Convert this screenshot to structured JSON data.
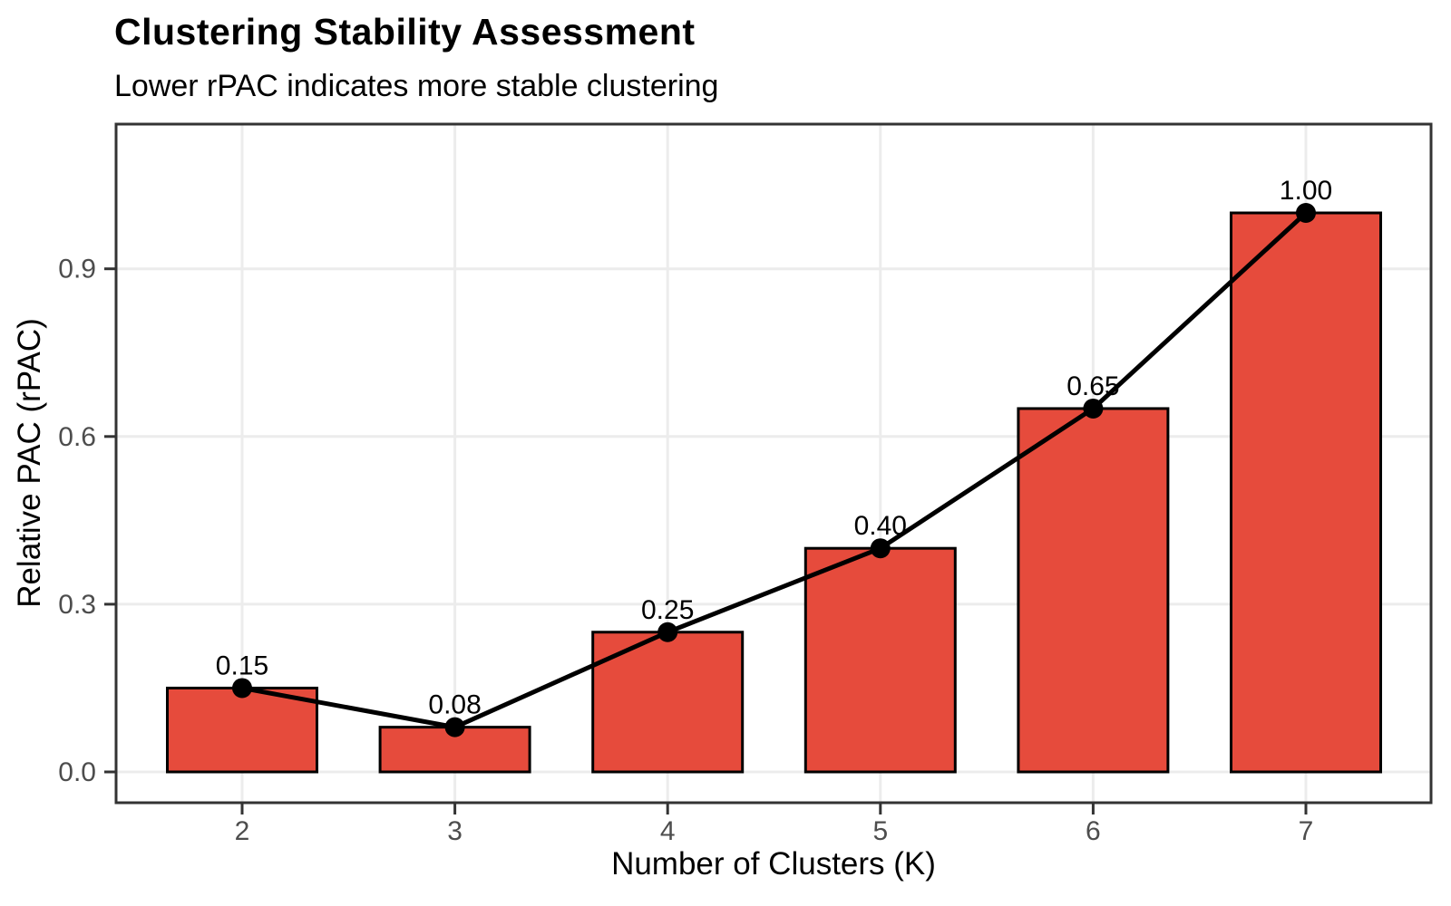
{
  "title": "Clustering Stability Assessment",
  "subtitle": "Lower rPAC indicates more stable clustering",
  "chart_data": {
    "type": "bar",
    "overlay": "line",
    "categories": [
      "2",
      "3",
      "4",
      "5",
      "6",
      "7"
    ],
    "values": [
      0.15,
      0.08,
      0.25,
      0.4,
      0.65,
      1.0
    ],
    "point_labels": [
      "0.15",
      "0.08",
      "0.25",
      "0.40",
      "0.65",
      "1.00"
    ],
    "title": "Clustering Stability Assessment",
    "subtitle": "Lower rPAC indicates more stable clustering",
    "xlabel": "Number of Clusters (K)",
    "ylabel": "Relative PAC (rPAC)",
    "y_ticks": [
      0.0,
      0.3,
      0.6,
      0.9
    ],
    "y_tick_labels": [
      "0.0",
      "0.3",
      "0.6",
      "0.9"
    ],
    "ylim": [
      -0.055,
      1.16
    ],
    "grid": true,
    "legend": false
  },
  "colors": {
    "bar_fill": "#E64B3C",
    "bar_stroke": "#000000",
    "line": "#000000",
    "point": "#000000",
    "point_label": "#000000",
    "grid": "#ECECEC",
    "panel_border": "#333333",
    "tick_mark": "#333333",
    "tick_label": "#4D4D4D",
    "background": "#FFFFFF"
  }
}
